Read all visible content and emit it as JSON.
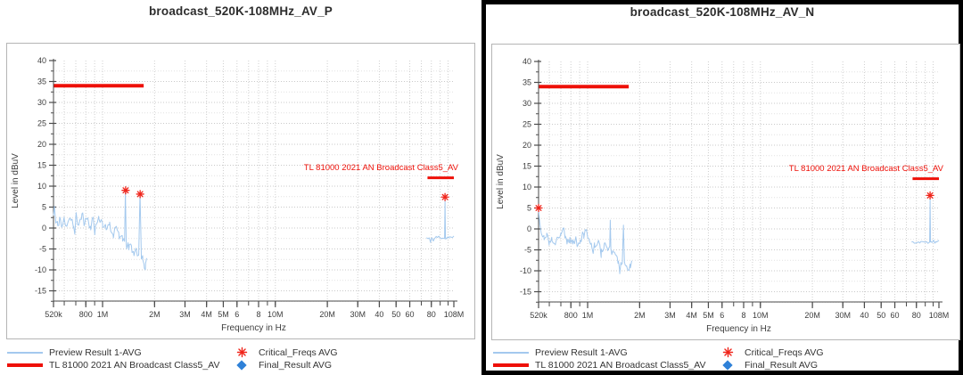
{
  "panels": [
    {
      "title": "broadcast_520K-108MHz_AV_P",
      "selected": false
    },
    {
      "title": "broadcast_520K-108MHz_AV_N",
      "selected": true
    }
  ],
  "legend": {
    "items": [
      {
        "label": "Preview Result 1-AVG",
        "swatch": "line",
        "color": "#a4c9ee"
      },
      {
        "label": "TL 81000 2021 AN Broadcast Class5_AV",
        "swatch": "thick-line",
        "color": "#ee1008"
      },
      {
        "label": "Critical_Freqs AVG",
        "swatch": "asterisk",
        "color": "#f0251b"
      },
      {
        "label": "Final_Result AVG",
        "swatch": "diamond",
        "color": "#2f81d8"
      }
    ]
  },
  "chart_data": [
    {
      "type": "line",
      "title": "broadcast_520K-108MHz_AV_P",
      "xlabel": "Frequency in Hz",
      "ylabel": "Level in dBuV",
      "x_scale": "log",
      "xlim_hz": [
        520000,
        108000000
      ],
      "ylim_db": [
        -17.5,
        40
      ],
      "grid": true,
      "y_major_ticks_db": [
        40,
        35,
        30,
        25,
        20,
        15,
        10,
        5,
        0,
        -5,
        -10,
        -15
      ],
      "x_major_ticks": [
        [
          520000,
          "520k"
        ],
        [
          800000,
          "800"
        ],
        [
          1000000,
          "1M"
        ],
        [
          2000000,
          "2M"
        ],
        [
          3000000,
          "3M"
        ],
        [
          4000000,
          "4M"
        ],
        [
          5000000,
          "5M"
        ],
        [
          6000000,
          "6"
        ],
        [
          8000000,
          "8"
        ],
        [
          10000000,
          "10M"
        ],
        [
          20000000,
          "20M"
        ],
        [
          30000000,
          "30M"
        ],
        [
          40000000,
          "40"
        ],
        [
          50000000,
          "50"
        ],
        [
          60000000,
          "60"
        ],
        [
          80000000,
          "80"
        ],
        [
          108000000,
          "108M"
        ]
      ],
      "x_minor_ticks_hz": [
        600000,
        700000,
        800000,
        900000,
        1000000,
        2000000,
        3000000,
        4000000,
        5000000,
        6000000,
        7000000,
        8000000,
        9000000,
        10000000,
        20000000,
        30000000,
        40000000,
        50000000,
        60000000,
        70000000,
        80000000,
        90000000,
        100000000
      ],
      "limit": {
        "label": "TL 81000 2021 AN Broadcast Class5_AV",
        "color": "#ee1008",
        "segments": [
          {
            "from_hz": 520000,
            "to_hz": 1730000,
            "level_db": 34
          },
          {
            "from_hz": 76000000,
            "to_hz": 108000000,
            "level_db": 12
          }
        ]
      },
      "critical_freqs": {
        "name": "Critical_Freqs AVG",
        "color": "#f0251b",
        "points": [
          [
            1360000,
            9.0
          ],
          [
            1650000,
            8.1
          ],
          [
            96000000,
            7.4
          ]
        ]
      },
      "preview": {
        "name": "Preview Result 1-AVG",
        "color": "#a4c9ee",
        "segments": [
          {
            "seed": 11,
            "noise_db": 1.3,
            "anchors": [
              [
                520000,
                3.0
              ],
              [
                526000,
                5.2
              ],
              [
                536000,
                1.2
              ],
              [
                550000,
                0.6
              ],
              [
                565000,
                2.6
              ],
              [
                580000,
                0.2
              ],
              [
                600000,
                2.2
              ],
              [
                620000,
                0.6
              ],
              [
                650000,
                2.4
              ],
              [
                680000,
                0.4
              ],
              [
                700000,
                2.6
              ],
              [
                730000,
                1.0
              ],
              [
                760000,
                3.4
              ],
              [
                790000,
                1.2
              ],
              [
                820000,
                2.4
              ],
              [
                850000,
                0.4
              ],
              [
                880000,
                2.6
              ],
              [
                910000,
                0.6
              ],
              [
                950000,
                2.8
              ],
              [
                1000000,
                1.2
              ],
              [
                1050000,
                -0.4
              ],
              [
                1100000,
                1.4
              ],
              [
                1150000,
                -1.6
              ],
              [
                1200000,
                0.4
              ],
              [
                1250000,
                -2.6
              ],
              [
                1300000,
                -1.8
              ],
              [
                1340000,
                -3.2
              ],
              [
                1355000,
                8.5
              ],
              [
                1372000,
                -3.8
              ],
              [
                1420000,
                -5.2
              ],
              [
                1470000,
                -4.2
              ],
              [
                1520000,
                -6.6
              ],
              [
                1570000,
                -5.2
              ],
              [
                1620000,
                -6.2
              ],
              [
                1648000,
                7.7
              ],
              [
                1676000,
                -6.6
              ],
              [
                1710000,
                -7.6
              ],
              [
                1745000,
                -9.6
              ],
              [
                1775000,
                -8.4
              ],
              [
                1800000,
                -7.2
              ]
            ]
          },
          {
            "seed": 12,
            "noise_db": 0.4,
            "anchors": [
              [
                75000000,
                -2.3
              ],
              [
                80000000,
                -2.5
              ],
              [
                85000000,
                -2.2
              ],
              [
                90000000,
                -2.4
              ],
              [
                95400000,
                -2.3
              ],
              [
                96000000,
                6.5
              ],
              [
                96600000,
                -2.3
              ],
              [
                100000000,
                -2.1
              ],
              [
                104000000,
                -2.2
              ],
              [
                108000000,
                -1.9
              ]
            ]
          }
        ]
      },
      "final_result": {
        "name": "Final_Result AVG",
        "color": "#2f81d8",
        "points": []
      }
    },
    {
      "type": "line",
      "title": "broadcast_520K-108MHz_AV_N",
      "xlabel": "Frequency in Hz",
      "ylabel": "Level in dBuV",
      "x_scale": "log",
      "xlim_hz": [
        520000,
        108000000
      ],
      "ylim_db": [
        -17.5,
        40
      ],
      "grid": true,
      "y_major_ticks_db": [
        40,
        35,
        30,
        25,
        20,
        15,
        10,
        5,
        0,
        -5,
        -10,
        -15
      ],
      "x_major_ticks": [
        [
          520000,
          "520k"
        ],
        [
          800000,
          "800"
        ],
        [
          1000000,
          "1M"
        ],
        [
          2000000,
          "2M"
        ],
        [
          3000000,
          "3M"
        ],
        [
          4000000,
          "4M"
        ],
        [
          5000000,
          "5M"
        ],
        [
          6000000,
          "6"
        ],
        [
          8000000,
          "8"
        ],
        [
          10000000,
          "10M"
        ],
        [
          20000000,
          "20M"
        ],
        [
          30000000,
          "30M"
        ],
        [
          40000000,
          "40"
        ],
        [
          50000000,
          "50"
        ],
        [
          60000000,
          "60"
        ],
        [
          80000000,
          "80"
        ],
        [
          108000000,
          "108M"
        ]
      ],
      "x_minor_ticks_hz": [
        600000,
        700000,
        800000,
        900000,
        1000000,
        2000000,
        3000000,
        4000000,
        5000000,
        6000000,
        7000000,
        8000000,
        9000000,
        10000000,
        20000000,
        30000000,
        40000000,
        50000000,
        60000000,
        70000000,
        80000000,
        90000000,
        100000000
      ],
      "limit": {
        "label": "TL 81000 2021 AN Broadcast Class5_AV",
        "color": "#ee1008",
        "segments": [
          {
            "from_hz": 520000,
            "to_hz": 1730000,
            "level_db": 34
          },
          {
            "from_hz": 76000000,
            "to_hz": 108000000,
            "level_db": 12
          }
        ]
      },
      "critical_freqs": {
        "name": "Critical_Freqs AVG",
        "color": "#f0251b",
        "points": [
          [
            520000,
            5.0
          ],
          [
            96000000,
            8.0
          ]
        ]
      },
      "preview": {
        "name": "Preview Result 1-AVG",
        "color": "#a4c9ee",
        "segments": [
          {
            "seed": 21,
            "noise_db": 1.2,
            "anchors": [
              [
                520000,
                4.5
              ],
              [
                530000,
                1.0
              ],
              [
                545000,
                -1.6
              ],
              [
                560000,
                -2.6
              ],
              [
                580000,
                -1.0
              ],
              [
                600000,
                -3.0
              ],
              [
                620000,
                -2.0
              ],
              [
                650000,
                -3.8
              ],
              [
                680000,
                -2.2
              ],
              [
                700000,
                -1.0
              ],
              [
                720000,
                0.2
              ],
              [
                740000,
                -2.2
              ],
              [
                760000,
                -3.6
              ],
              [
                790000,
                -2.0
              ],
              [
                820000,
                -3.6
              ],
              [
                850000,
                -2.4
              ],
              [
                880000,
                -3.8
              ],
              [
                910000,
                -2.6
              ],
              [
                950000,
                -1.4
              ],
              [
                980000,
                -0.4
              ],
              [
                1010000,
                -2.2
              ],
              [
                1050000,
                -3.4
              ],
              [
                1100000,
                -4.4
              ],
              [
                1150000,
                -3.0
              ],
              [
                1200000,
                -4.8
              ],
              [
                1250000,
                -3.4
              ],
              [
                1300000,
                -4.6
              ],
              [
                1342000,
                -4.2
              ],
              [
                1352000,
                2.1
              ],
              [
                1364000,
                -4.8
              ],
              [
                1400000,
                -5.2
              ],
              [
                1450000,
                -6.2
              ],
              [
                1500000,
                -8.2
              ],
              [
                1532000,
                -9.8
              ],
              [
                1560000,
                -8.0
              ],
              [
                1590000,
                -7.2
              ],
              [
                1612000,
                0.9
              ],
              [
                1634000,
                -7.8
              ],
              [
                1680000,
                -8.8
              ],
              [
                1720000,
                -9.8
              ],
              [
                1760000,
                -8.4
              ],
              [
                1800000,
                -7.6
              ]
            ]
          },
          {
            "seed": 22,
            "noise_db": 0.4,
            "anchors": [
              [
                75000000,
                -3.1
              ],
              [
                80000000,
                -3.3
              ],
              [
                85000000,
                -3.0
              ],
              [
                90000000,
                -3.2
              ],
              [
                95400000,
                -3.1
              ],
              [
                96000000,
                7.1
              ],
              [
                96600000,
                -3.1
              ],
              [
                100000000,
                -2.9
              ],
              [
                104000000,
                -3.0
              ],
              [
                108000000,
                -2.7
              ]
            ]
          }
        ]
      },
      "final_result": {
        "name": "Final_Result AVG",
        "color": "#2f81d8",
        "points": []
      }
    }
  ]
}
